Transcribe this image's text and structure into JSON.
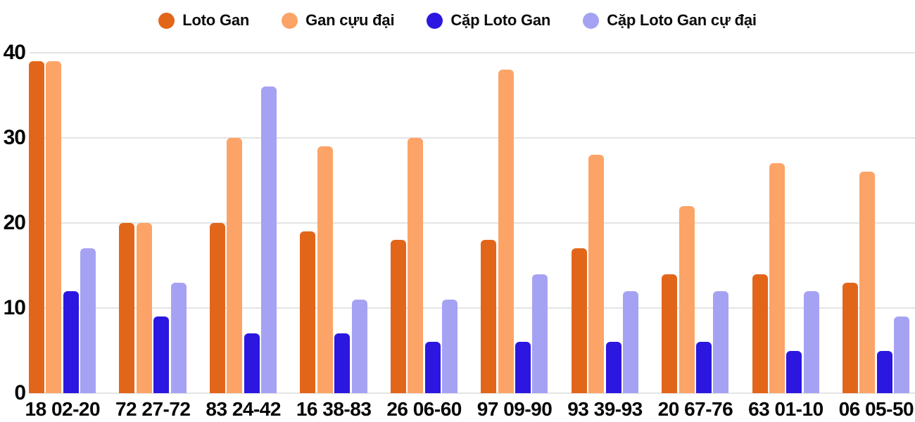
{
  "chart_data": {
    "type": "bar",
    "title": "",
    "xlabel": "",
    "ylabel": "",
    "categories": [
      "18 02-20",
      "72 27-72",
      "83 24-42",
      "16 38-83",
      "26 06-60",
      "97 09-90",
      "93 39-93",
      "20 67-76",
      "63 01-10",
      "06 05-50"
    ],
    "series": [
      {
        "name": "Loto Gan",
        "color": "#e2661a",
        "values": [
          39,
          20,
          20,
          19,
          18,
          18,
          17,
          14,
          14,
          13
        ]
      },
      {
        "name": "Gan cựu đại",
        "color": "#fca467",
        "values": [
          39,
          20,
          30,
          29,
          30,
          38,
          28,
          22,
          27,
          26
        ]
      },
      {
        "name": "Cặp Loto Gan",
        "color": "#2b17e0",
        "values": [
          12,
          9,
          7,
          7,
          6,
          6,
          6,
          6,
          5,
          5
        ]
      },
      {
        "name": "Cặp Loto Gan cự đại",
        "color": "#a6a2f3",
        "values": [
          17,
          13,
          36,
          11,
          11,
          14,
          12,
          12,
          12,
          9
        ]
      }
    ],
    "y_ticks": [
      0,
      10,
      20,
      30,
      40
    ],
    "ylim": [
      0,
      40
    ],
    "grid": true,
    "legend_position": "top",
    "colors": {
      "background": "#ffffff",
      "gridline": "#e4e4e4",
      "text": "#050505"
    }
  }
}
